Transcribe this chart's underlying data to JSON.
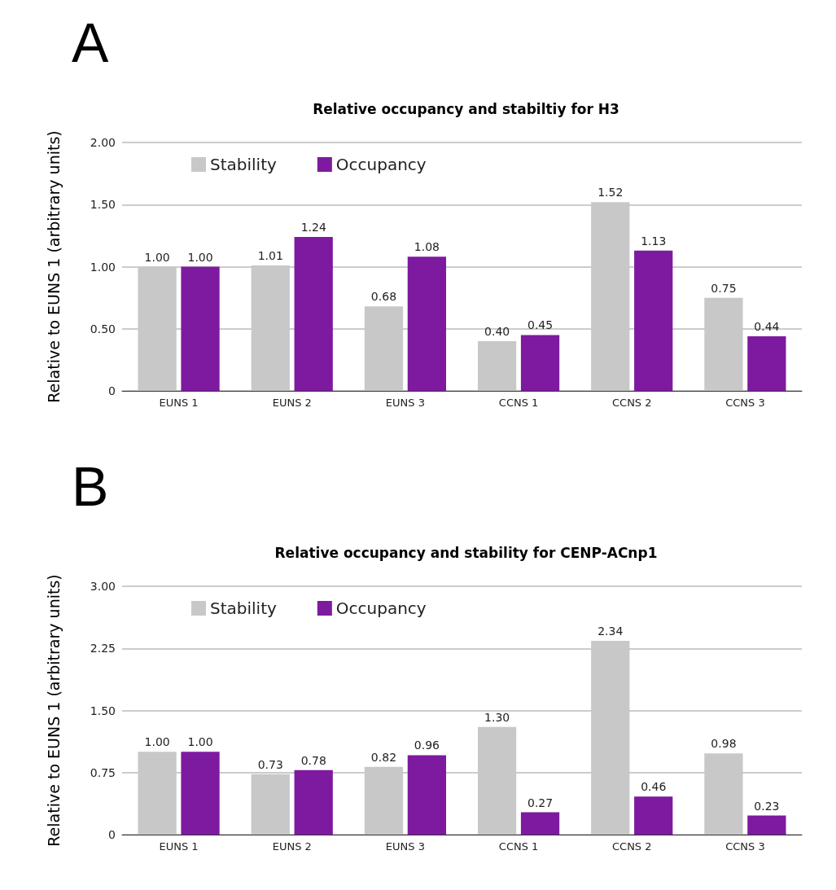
{
  "chart_data": [
    {
      "type": "bar",
      "title": "Relative occupancy and stabiltiy for H3",
      "ylabel": "Relative to EUNS 1 (arbitrary units)",
      "annotations": [
        "A"
      ],
      "categories": [
        "EUNS 1",
        "EUNS 2",
        "EUNS 3",
        "CCNS 1",
        "CCNS 2",
        "CCNS 3"
      ],
      "series": [
        {
          "name": "Stability",
          "color": "#c8c8c8",
          "values": [
            1.0,
            1.01,
            0.68,
            0.4,
            1.52,
            0.75
          ],
          "value_labels": [
            "1.00",
            "1.01",
            "0.68",
            "0.40",
            "1.52",
            "0.75"
          ]
        },
        {
          "name": "Occupancy",
          "color": "#7d1a9f",
          "values": [
            1.0,
            1.24,
            1.08,
            0.45,
            1.13,
            0.44
          ],
          "value_labels": [
            "1.00",
            "1.24",
            "1.08",
            "0.45",
            "1.13",
            "0.44"
          ]
        }
      ],
      "ylim": [
        0,
        2
      ],
      "yticks": [
        0,
        {
          "value": 0.5,
          "label": "0.50"
        },
        {
          "value": 1,
          "label": "1.00"
        },
        {
          "value": 1.5,
          "label": "1.50"
        },
        {
          "value": 2,
          "label": "2.00"
        }
      ],
      "grid": "y",
      "legend": "top left"
    },
    {
      "type": "bar",
      "title": "Relative occupancy and stability for CENP-ACnp1",
      "ylabel": "Relative to EUNS 1 (arbitrary units)",
      "annotations": [
        "B"
      ],
      "categories": [
        "EUNS 1",
        "EUNS 2",
        "EUNS 3",
        "CCNS 1",
        "CCNS 2",
        "CCNS 3"
      ],
      "series": [
        {
          "name": "Stability",
          "color": "#c8c8c8",
          "values": [
            1.0,
            0.73,
            0.82,
            1.3,
            2.34,
            0.98
          ],
          "value_labels": [
            "1.00",
            "0.73",
            "0.82",
            "1.30",
            "2.34",
            "0.98"
          ]
        },
        {
          "name": "Occupancy",
          "color": "#7d1a9f",
          "values": [
            1.0,
            0.78,
            0.96,
            0.27,
            0.46,
            0.23
          ],
          "value_labels": [
            "1.00",
            "0.78",
            "0.96",
            "0.27",
            "0.46",
            "0.23"
          ]
        }
      ],
      "ylim": [
        0,
        3
      ],
      "yticks": [
        0,
        {
          "value": 0.75,
          "label": "0.75"
        },
        {
          "value": 1.5,
          "label": "1.50"
        },
        {
          "value": 2.25,
          "label": "2.25"
        },
        {
          "value": 3,
          "label": "3.00"
        }
      ],
      "grid": "y",
      "legend": "top left"
    }
  ]
}
